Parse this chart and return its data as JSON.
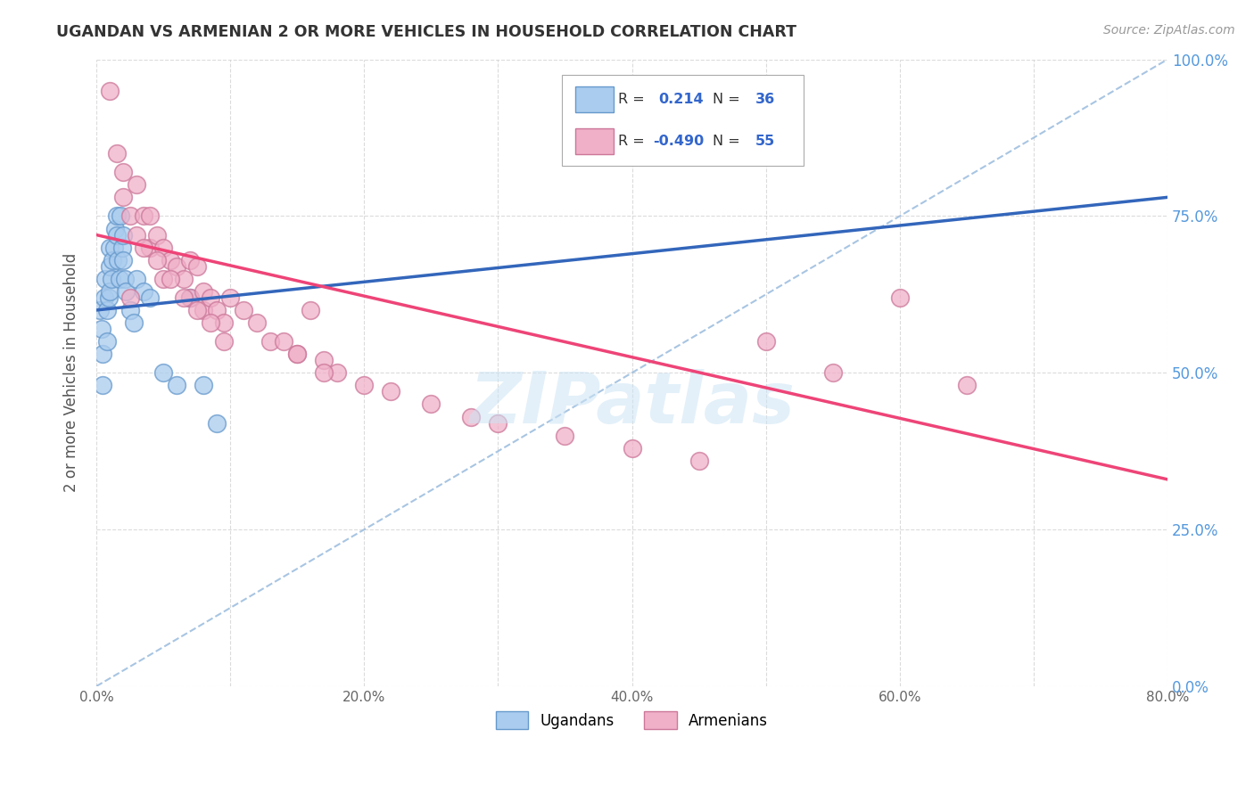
{
  "title": "UGANDAN VS ARMENIAN 2 OR MORE VEHICLES IN HOUSEHOLD CORRELATION CHART",
  "source": "Source: ZipAtlas.com",
  "ylabel_label": "2 or more Vehicles in Household",
  "legend_label1": "Ugandans",
  "legend_label2": "Armenians",
  "R1": 0.214,
  "N1": 36,
  "R2": -0.49,
  "N2": 55,
  "color_ugandan_fill": "#aaccee",
  "color_ugandan_edge": "#6699cc",
  "color_armenian_fill": "#f0b0c8",
  "color_armenian_edge": "#cc7799",
  "color_line_ugandan": "#3366bb",
  "color_line_armenian": "#ee4477",
  "color_dashed": "#99bbdd",
  "watermark": "ZIPatlas",
  "watermark_color": "#cce4f5",
  "xlim_max": 80,
  "ylim_max": 100,
  "background": "#ffffff",
  "grid_color": "#cccccc",
  "right_axis_color": "#5599dd",
  "title_color": "#333333",
  "source_color": "#999999",
  "legend_value_color": "#3366cc",
  "ugandan_x": [
    0.3,
    0.4,
    0.5,
    0.5,
    0.6,
    0.7,
    0.8,
    0.8,
    0.9,
    1.0,
    1.0,
    1.0,
    1.1,
    1.2,
    1.3,
    1.4,
    1.5,
    1.5,
    1.6,
    1.7,
    1.8,
    1.9,
    2.0,
    2.0,
    2.1,
    2.2,
    2.5,
    2.8,
    3.0,
    3.5,
    4.0,
    5.0,
    6.0,
    7.0,
    8.0,
    9.0
  ],
  "ugandan_y": [
    60,
    57,
    53,
    48,
    62,
    65,
    60,
    55,
    62,
    70,
    67,
    63,
    65,
    68,
    70,
    73,
    75,
    72,
    68,
    65,
    75,
    70,
    72,
    68,
    65,
    63,
    60,
    58,
    65,
    63,
    62,
    50,
    48,
    62,
    48,
    42
  ],
  "armenian_x": [
    1.0,
    1.5,
    2.0,
    2.0,
    2.5,
    3.0,
    3.0,
    3.5,
    4.0,
    4.0,
    4.5,
    5.0,
    5.0,
    5.5,
    6.0,
    6.5,
    7.0,
    7.0,
    7.5,
    8.0,
    8.0,
    8.5,
    9.0,
    9.5,
    10.0,
    11.0,
    12.0,
    13.0,
    14.0,
    15.0,
    16.0,
    17.0,
    18.0,
    20.0,
    22.0,
    25.0,
    28.0,
    30.0,
    35.0,
    40.0,
    45.0,
    50.0,
    55.0,
    60.0,
    65.0,
    3.5,
    4.5,
    5.5,
    6.5,
    7.5,
    8.5,
    9.5,
    15.0,
    17.0,
    2.5
  ],
  "armenian_y": [
    95,
    85,
    82,
    78,
    75,
    80,
    72,
    75,
    75,
    70,
    72,
    70,
    65,
    68,
    67,
    65,
    68,
    62,
    67,
    63,
    60,
    62,
    60,
    58,
    62,
    60,
    58,
    55,
    55,
    53,
    60,
    52,
    50,
    48,
    47,
    45,
    43,
    42,
    40,
    38,
    36,
    55,
    50,
    62,
    48,
    70,
    68,
    65,
    62,
    60,
    58,
    55,
    53,
    50,
    62
  ],
  "ug_line_x0": 0,
  "ug_line_y0": 60,
  "ug_line_x1": 80,
  "ug_line_y1": 78,
  "ar_line_x0": 0,
  "ar_line_y0": 72,
  "ar_line_x1": 80,
  "ar_line_y1": 33,
  "dash_line_x0": 0,
  "dash_line_y0": 0,
  "dash_line_x1": 80,
  "dash_line_y1": 100,
  "x_ticks": [
    0,
    10,
    20,
    30,
    40,
    50,
    60,
    70,
    80
  ],
  "x_tick_labels": [
    "0.0%",
    "",
    "20.0%",
    "",
    "40.0%",
    "",
    "60.0%",
    "",
    "80.0%"
  ],
  "y_ticks": [
    0,
    25,
    50,
    75,
    100
  ],
  "y_tick_labels_right": [
    "0.0%",
    "25.0%",
    "50.0%",
    "75.0%",
    "100.0%"
  ]
}
